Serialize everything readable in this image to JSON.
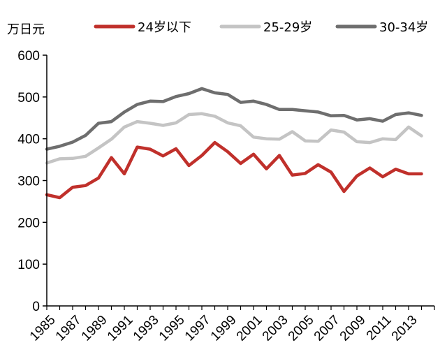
{
  "chart_data": {
    "type": "line",
    "title": "",
    "ylabel": "万日元",
    "xlabel": "",
    "ylim": [
      0,
      600
    ],
    "yticks": [
      0,
      100,
      200,
      300,
      400,
      500,
      600
    ],
    "x": [
      1985,
      1986,
      1987,
      1988,
      1989,
      1990,
      1991,
      1992,
      1993,
      1994,
      1995,
      1996,
      1997,
      1998,
      1999,
      2000,
      2001,
      2002,
      2003,
      2004,
      2005,
      2006,
      2007,
      2008,
      2009,
      2010,
      2011,
      2012,
      2013,
      2014
    ],
    "xtick_labels": [
      "1985",
      "1987",
      "1989",
      "1991",
      "1993",
      "1995",
      "1997",
      "1999",
      "2001",
      "2003",
      "2005",
      "2007",
      "2009",
      "2011",
      "2013"
    ],
    "legend_position": "top",
    "grid": false,
    "series": [
      {
        "name": "24岁以下",
        "color": "#C0302B",
        "values": [
          266,
          259,
          284,
          288,
          306,
          355,
          316,
          380,
          375,
          359,
          376,
          336,
          360,
          391,
          369,
          341,
          363,
          328,
          360,
          313,
          317,
          338,
          320,
          274,
          311,
          330,
          309,
          327,
          316,
          316
        ]
      },
      {
        "name": "25-29岁",
        "color": "#C4C4C4",
        "values": [
          342,
          352,
          353,
          358,
          378,
          399,
          428,
          441,
          437,
          432,
          438,
          458,
          460,
          454,
          438,
          431,
          404,
          400,
          399,
          417,
          395,
          394,
          421,
          416,
          393,
          391,
          400,
          398,
          428,
          407
        ]
      },
      {
        "name": "30-34岁",
        "color": "#6E6E6E",
        "values": [
          375,
          382,
          392,
          408,
          437,
          441,
          464,
          482,
          490,
          489,
          501,
          508,
          520,
          510,
          506,
          487,
          490,
          482,
          470,
          470,
          467,
          464,
          455,
          456,
          445,
          448,
          442,
          458,
          462,
          456
        ]
      }
    ]
  }
}
